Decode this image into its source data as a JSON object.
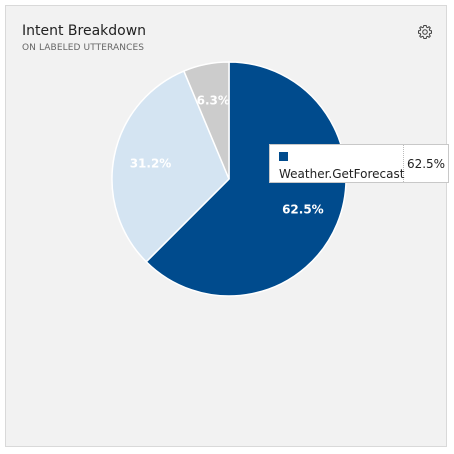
{
  "widget": {
    "title": "Intent Breakdown",
    "subtitle": "ON LABELED UTTERANCES",
    "settings_icon": "gear-icon"
  },
  "chart_data": {
    "type": "pie",
    "title": "Intent Breakdown",
    "subtitle": "ON LABELED UTTERANCES",
    "slices": [
      {
        "label": "Weather.GetForecast",
        "value": 62.5,
        "display": "62.5%",
        "color": "#004b8d"
      },
      {
        "label": "",
        "value": 31.2,
        "display": "31.2%",
        "color": "#d4e4f2"
      },
      {
        "label": "",
        "value": 6.3,
        "display": "6.3%",
        "color": "#cccccc"
      }
    ],
    "start": "12 o'clock, clockwise"
  },
  "tooltip": {
    "name": "Weather.GetForecast",
    "value": "62.5%",
    "swatch_color": "#004b8d"
  },
  "colors": {
    "card_background": "#f2f2f2",
    "slice_border": "#ffffff"
  }
}
